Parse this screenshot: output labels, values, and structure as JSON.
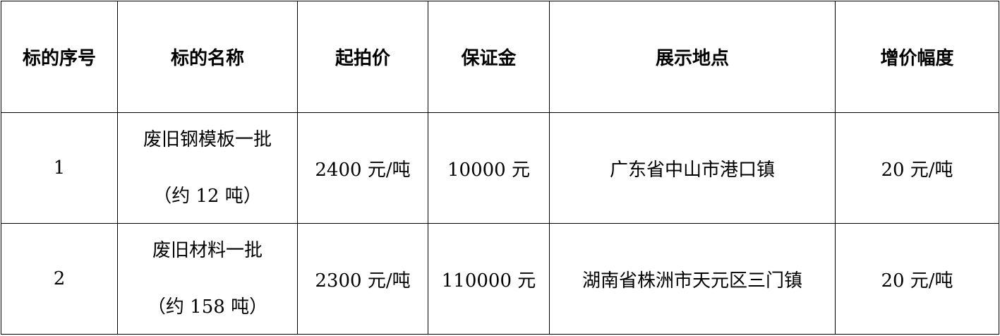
{
  "table": {
    "headers": [
      "标的序号",
      "标的名称",
      "起拍价",
      "保证金",
      "展示地点",
      "增价幅度"
    ],
    "rows": [
      {
        "no": "1",
        "name": "废旧钢模板一批",
        "qty": "（约 12 吨）",
        "start_price": "2400 元/吨",
        "deposit": "10000 元",
        "location": "广东省中山市港口镇",
        "increment": "20 元/吨"
      },
      {
        "no": "2",
        "name": "废旧材料一批",
        "qty": "（约 158 吨）",
        "start_price": "2300 元/吨",
        "deposit": "110000 元",
        "location": "湖南省株洲市天元区三门镇",
        "increment": "20 元/吨"
      }
    ]
  }
}
